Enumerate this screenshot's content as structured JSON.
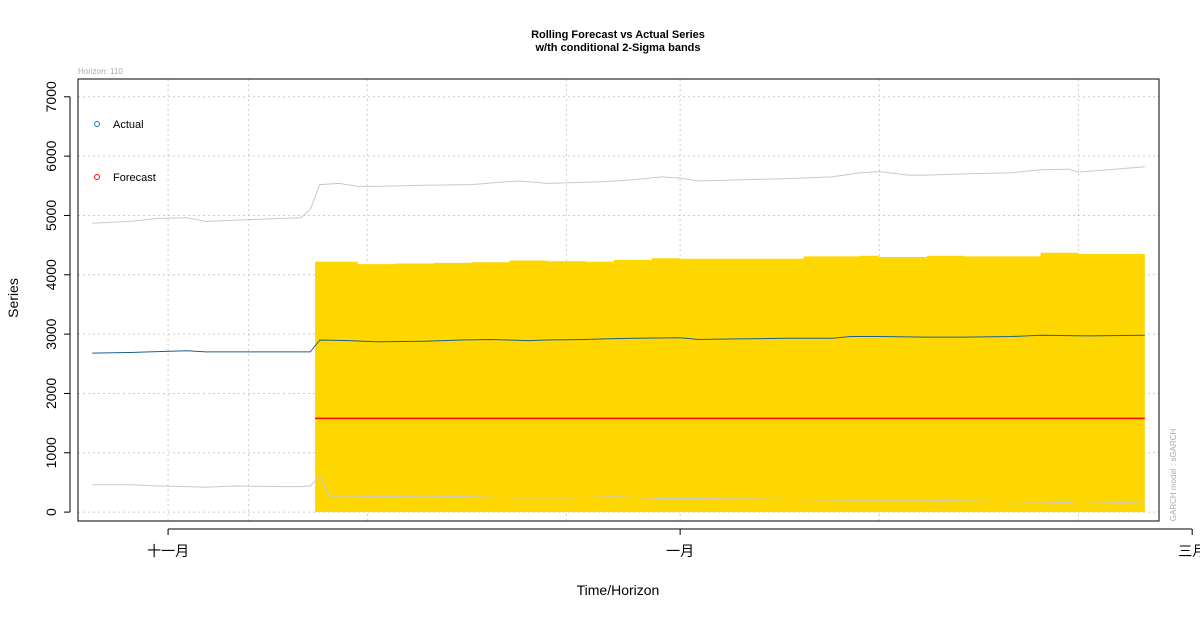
{
  "chart_data": {
    "type": "line",
    "title": "Rolling Forecast vs Actual Series",
    "subtitle": "w/th conditional 2-Sigma bands",
    "xlabel": "Time/Horizon",
    "ylabel": "Series",
    "horizon_label": "Horizon: 110",
    "side_note": "GARCH model : sGARCH",
    "x_range": [
      -3,
      225
    ],
    "ylim": [
      -150,
      7300
    ],
    "y_ticks": [
      0,
      1000,
      2000,
      3000,
      4000,
      5000,
      6000,
      7000
    ],
    "x_ticks": [
      {
        "day": 16,
        "label": "十一月"
      },
      {
        "day": 124,
        "label": "一月"
      },
      {
        "day": 232,
        "label": "三月"
      }
    ],
    "x_grid_days": [
      16,
      33,
      58,
      100,
      124,
      166,
      208
    ],
    "grid": true,
    "forecast_start_day": 47,
    "legend": {
      "position": "top-left",
      "entries": [
        {
          "label": "Actual",
          "color": "#1f77b4"
        },
        {
          "label": "Forecast",
          "color": "#ff0000"
        }
      ]
    },
    "colors": {
      "actual": "#1f5f8b",
      "forecast": "#ff0000",
      "band_fill": "#ffd700",
      "sigma_lines": "#c8c8c8",
      "grid": "#cccccc"
    },
    "actual": {
      "x": [
        0,
        8,
        12,
        20,
        24,
        34,
        40,
        44,
        46,
        48,
        54,
        60,
        70,
        78,
        84,
        92,
        96,
        104,
        108,
        114,
        124,
        128,
        136,
        146,
        156,
        160,
        166,
        176,
        184,
        194,
        200,
        210,
        222
      ],
      "y": [
        2680,
        2690,
        2700,
        2720,
        2700,
        2700,
        2700,
        2700,
        2700,
        2900,
        2890,
        2870,
        2880,
        2900,
        2910,
        2890,
        2900,
        2910,
        2920,
        2930,
        2940,
        2910,
        2920,
        2930,
        2930,
        2960,
        2960,
        2950,
        2950,
        2960,
        2980,
        2970,
        2980
      ]
    },
    "forecast": {
      "x": [
        47,
        222
      ],
      "y": [
        1580,
        1580
      ]
    },
    "upper_band": {
      "x": [
        47,
        54,
        56,
        64,
        72,
        80,
        88,
        96,
        104,
        110,
        118,
        124,
        136,
        150,
        162,
        166,
        176,
        184,
        200,
        208,
        222
      ],
      "y": [
        4220,
        4220,
        4180,
        4190,
        4200,
        4210,
        4240,
        4230,
        4220,
        4250,
        4280,
        4270,
        4270,
        4310,
        4320,
        4300,
        4320,
        4310,
        4370,
        4350,
        4400
      ]
    },
    "lower_band": {
      "x": [
        47,
        222
      ],
      "y": [
        0,
        0
      ]
    },
    "sigma_upper": {
      "x": [
        0,
        8,
        14,
        20,
        24,
        30,
        40,
        44,
        46,
        48,
        52,
        56,
        60,
        70,
        80,
        86,
        90,
        96,
        104,
        108,
        114,
        120,
        124,
        128,
        136,
        146,
        156,
        162,
        166,
        172,
        176,
        184,
        194,
        200,
        206,
        208,
        222
      ],
      "y": [
        4870,
        4900,
        4950,
        4960,
        4900,
        4920,
        4950,
        4960,
        5100,
        5520,
        5540,
        5490,
        5490,
        5510,
        5520,
        5560,
        5580,
        5540,
        5560,
        5570,
        5600,
        5650,
        5630,
        5580,
        5600,
        5620,
        5650,
        5720,
        5740,
        5680,
        5680,
        5700,
        5720,
        5770,
        5780,
        5730,
        5820
      ]
    },
    "sigma_lower": {
      "x": [
        0,
        8,
        14,
        20,
        24,
        30,
        40,
        44,
        46,
        48,
        50,
        56,
        60,
        70,
        80,
        90,
        100,
        110,
        120,
        124,
        128,
        140,
        150,
        160,
        166,
        176,
        190,
        200,
        206,
        208,
        222
      ],
      "y": [
        460,
        460,
        440,
        430,
        420,
        440,
        430,
        430,
        440,
        600,
        270,
        270,
        260,
        270,
        260,
        240,
        240,
        260,
        230,
        230,
        230,
        220,
        210,
        200,
        200,
        200,
        180,
        170,
        160,
        180,
        150
      ]
    }
  }
}
